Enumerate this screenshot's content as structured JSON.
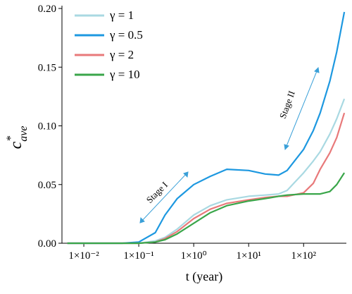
{
  "chart_data": {
    "type": "line",
    "x_label": "t (year)",
    "y_label": {
      "text": "c",
      "superscript": "*",
      "subscript": "ave"
    },
    "log_x": true,
    "legend": "upper left",
    "x": [
      0.005,
      0.01,
      0.02,
      0.05,
      0.1,
      0.2,
      0.3,
      0.5,
      1,
      2,
      4,
      10,
      20,
      35,
      50,
      100,
      150,
      200,
      300,
      400,
      550
    ],
    "series": [
      {
        "name": "γ = 1",
        "color": "#a9d9e2",
        "values": [
          0,
          0,
          0,
          0,
          0,
          0.002,
          0.005,
          0.012,
          0.024,
          0.032,
          0.037,
          0.04,
          0.041,
          0.042,
          0.045,
          0.06,
          0.07,
          0.078,
          0.093,
          0.106,
          0.123
        ]
      },
      {
        "name": "γ = 0.5",
        "color": "#1d98e0",
        "values": [
          0,
          0,
          0,
          0,
          0.001,
          0.009,
          0.024,
          0.038,
          0.05,
          0.057,
          0.063,
          0.062,
          0.059,
          0.058,
          0.062,
          0.08,
          0.096,
          0.111,
          0.138,
          0.163,
          0.197
        ]
      },
      {
        "name": "γ = 2",
        "color": "#e8797a",
        "values": [
          0,
          0,
          0,
          0,
          0,
          0.001,
          0.004,
          0.01,
          0.021,
          0.029,
          0.034,
          0.037,
          0.039,
          0.04,
          0.04,
          0.043,
          0.051,
          0.063,
          0.077,
          0.09,
          0.111
        ]
      },
      {
        "name": "γ = 10",
        "color": "#3aa64a",
        "values": [
          0,
          0,
          0,
          0,
          0,
          0.001,
          0.003,
          0.008,
          0.017,
          0.026,
          0.032,
          0.036,
          0.038,
          0.04,
          0.041,
          0.042,
          0.042,
          0.042,
          0.044,
          0.05,
          0.06
        ]
      }
    ],
    "xlim": [
      0.004,
      600
    ],
    "xticks": [
      {
        "value": 0.01,
        "label": "1×10⁻²"
      },
      {
        "value": 0.1,
        "label": "1×10⁻¹"
      },
      {
        "value": 1,
        "label": "1×10⁰"
      },
      {
        "value": 10,
        "label": "1×10¹"
      },
      {
        "value": 100,
        "label": "1×10²"
      }
    ],
    "ylim": [
      0,
      0.2
    ],
    "yticks": [
      {
        "value": 0,
        "label": "0.00"
      },
      {
        "value": 0.05,
        "label": "0.05"
      },
      {
        "value": 0.1,
        "label": "0.10"
      },
      {
        "value": 0.15,
        "label": "0.15"
      },
      {
        "value": 0.2,
        "label": "0.20"
      }
    ],
    "annotations": [
      "Stage I",
      "Stage II"
    ]
  }
}
